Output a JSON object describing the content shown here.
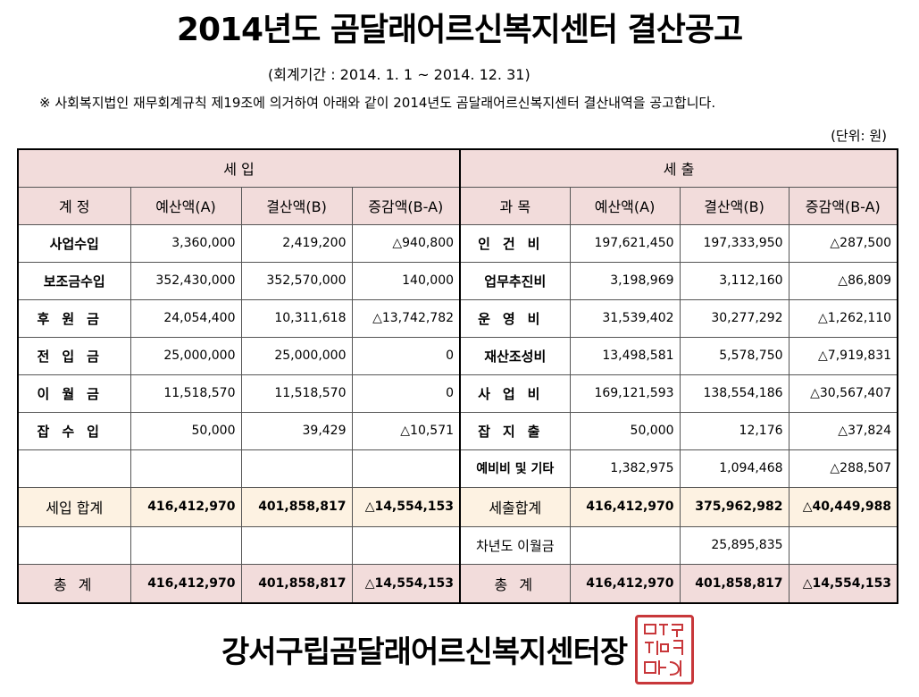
{
  "title": "2014년도  곰달래어르신복지센터  결산공고",
  "period": "(회계기간 : 2014.  1.  1 ~ 2014.  12.  31)",
  "notice": "※  사회복지법인 재무회계규칙 제19조에 의거하여 아래와 같이 2014년도 곰달래어르신복지센터 결산내역을 공고합니다.",
  "unit": "(단위: 원)",
  "income": {
    "header": "세 입",
    "cols": [
      "계 정",
      "예산액(A)",
      "결산액(B)",
      "증감액(B-A)"
    ],
    "rows": [
      {
        "label": "사업수입",
        "budget": "3,360,000",
        "actual": "2,419,200",
        "diff": "△940,800"
      },
      {
        "label": "보조금수입",
        "budget": "352,430,000",
        "actual": "352,570,000",
        "diff": "140,000"
      },
      {
        "label": "후원금",
        "budget": "24,054,400",
        "actual": "10,311,618",
        "diff": "△13,742,782"
      },
      {
        "label": "전입금",
        "budget": "25,000,000",
        "actual": "25,000,000",
        "diff": "0"
      },
      {
        "label": "이월금",
        "budget": "11,518,570",
        "actual": "11,518,570",
        "diff": "0"
      },
      {
        "label": "잡수입",
        "budget": "50,000",
        "actual": "39,429",
        "diff": "△10,571"
      }
    ],
    "subtotal": {
      "label": "세입 합계",
      "budget": "416,412,970",
      "actual": "401,858,817",
      "diff": "△14,554,153"
    },
    "total": {
      "label": "총 계",
      "budget": "416,412,970",
      "actual": "401,858,817",
      "diff": "△14,554,153"
    }
  },
  "expense": {
    "header": "세 출",
    "cols": [
      "과 목",
      "예산액(A)",
      "결산액(B)",
      "증감액(B-A)"
    ],
    "rows": [
      {
        "label": "인건비",
        "budget": "197,621,450",
        "actual": "197,333,950",
        "diff": "△287,500"
      },
      {
        "label": "업무추진비",
        "budget": "3,198,969",
        "actual": "3,112,160",
        "diff": "△86,809"
      },
      {
        "label": "운영비",
        "budget": "31,539,402",
        "actual": "30,277,292",
        "diff": "△1,262,110"
      },
      {
        "label": "재산조성비",
        "budget": "13,498,581",
        "actual": "5,578,750",
        "diff": "△7,919,831"
      },
      {
        "label": "사업비",
        "budget": "169,121,593",
        "actual": "138,554,186",
        "diff": "△30,567,407"
      },
      {
        "label": "잡지출",
        "budget": "50,000",
        "actual": "12,176",
        "diff": "△37,824"
      },
      {
        "label": "예비비 및 기타",
        "budget": "1,382,975",
        "actual": "1,094,468",
        "diff": "△288,507"
      }
    ],
    "subtotal": {
      "label": "세출합계",
      "budget": "416,412,970",
      "actual": "375,962,982",
      "diff": "△40,449,988"
    },
    "carryover": {
      "label": "차년도 이월금",
      "actual": "25,895,835"
    },
    "total": {
      "label": "총 계",
      "budget": "416,412,970",
      "actual": "401,858,817",
      "diff": "△14,554,153"
    }
  },
  "footer": "강서구립곰달래어르신복지센터장",
  "seal_text": "곰달래어르신복지센터장인",
  "colors": {
    "header_bg": "#f2dcdb",
    "subtotal_bg": "#fdf2e2",
    "seal": "#c8373a"
  }
}
